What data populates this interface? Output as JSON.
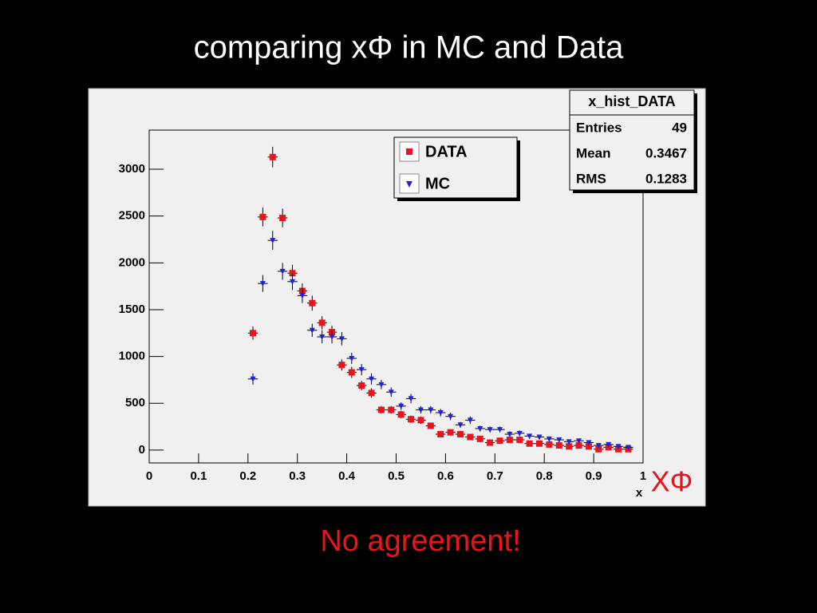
{
  "chart_data": {
    "type": "scatter",
    "title": "comparing xΦ in MC and Data",
    "x_label": "x",
    "annotation": "XΦ",
    "note": "No agreement!",
    "x": [
      0.21,
      0.23,
      0.25,
      0.27,
      0.29,
      0.31,
      0.33,
      0.35,
      0.37,
      0.39,
      0.41,
      0.43,
      0.45,
      0.47,
      0.49,
      0.51,
      0.53,
      0.55,
      0.57,
      0.59,
      0.61,
      0.63,
      0.65,
      0.67,
      0.69,
      0.71,
      0.73,
      0.75,
      0.77,
      0.79,
      0.81,
      0.83,
      0.85,
      0.87,
      0.89,
      0.91,
      0.93,
      0.95,
      0.97
    ],
    "x_error": 0.01,
    "series": [
      {
        "name": "DATA",
        "color": "#e8141e",
        "marker": "square",
        "values": [
          1250,
          2490,
          3130,
          2480,
          1890,
          1700,
          1570,
          1360,
          1260,
          910,
          830,
          690,
          610,
          430,
          430,
          380,
          330,
          320,
          260,
          170,
          190,
          170,
          140,
          120,
          80,
          100,
          110,
          110,
          70,
          70,
          60,
          50,
          40,
          50,
          40,
          10,
          30,
          10,
          10
        ],
        "errors": [
          70,
          100,
          110,
          100,
          90,
          80,
          80,
          70,
          70,
          60,
          60,
          50,
          50,
          40,
          40,
          40,
          40,
          40,
          30,
          30,
          30,
          30,
          20,
          20,
          20,
          20,
          20,
          20,
          20,
          20,
          20,
          10,
          10,
          10,
          10,
          10,
          10,
          10,
          10
        ]
      },
      {
        "name": "MC",
        "color": "#2020e0",
        "marker": "triangle-down",
        "values": [
          760,
          1780,
          2240,
          1910,
          1800,
          1650,
          1280,
          1210,
          1210,
          1190,
          980,
          860,
          760,
          700,
          620,
          470,
          550,
          430,
          430,
          400,
          360,
          270,
          320,
          230,
          220,
          220,
          170,
          180,
          150,
          140,
          120,
          110,
          90,
          100,
          80,
          50,
          60,
          40,
          30
        ],
        "errors": [
          60,
          90,
          100,
          90,
          90,
          80,
          70,
          70,
          70,
          70,
          60,
          60,
          60,
          50,
          50,
          40,
          50,
          40,
          40,
          40,
          40,
          30,
          40,
          30,
          30,
          30,
          30,
          30,
          20,
          20,
          20,
          20,
          20,
          20,
          20,
          10,
          20,
          10,
          10
        ]
      }
    ],
    "xlim": [
      0,
      1
    ],
    "xticks": [
      0,
      0.1,
      0.2,
      0.3,
      0.4,
      0.5,
      0.6,
      0.7,
      0.8,
      0.9,
      1
    ],
    "ylim": [
      -137,
      3418
    ],
    "yticks": [
      0,
      500,
      1000,
      1500,
      2000,
      2500,
      3000
    ],
    "stats_box": {
      "title": "x_hist_DATA",
      "rows": [
        [
          "Entries",
          49
        ],
        [
          "Mean",
          0.3467
        ],
        [
          "RMS",
          0.1283
        ]
      ]
    }
  }
}
